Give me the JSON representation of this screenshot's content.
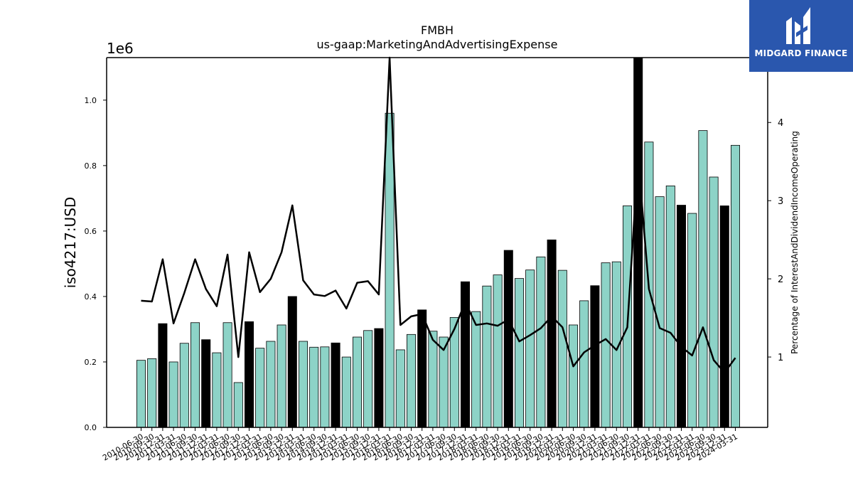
{
  "brand": {
    "name": "MIDGARD FINANCE",
    "background": "#2a57ae"
  },
  "chart_data": {
    "type": "bar",
    "title": "FMBH",
    "subtitle": "us-gaap:MarketingAndAdvertisingExpense",
    "ylabel": "iso4217:USD",
    "y_offset_label": "1e6",
    "y2label": "Percentage of InterestAndDividendIncomeOperating",
    "ylim": [
      0,
      1130000
    ],
    "y2lim": [
      0.1,
      4.83
    ],
    "yticks": [
      "0.0",
      "0.2",
      "0.4",
      "0.6",
      "0.8",
      "1.0"
    ],
    "y2ticks": [
      "1",
      "2",
      "3",
      "4"
    ],
    "colors": {
      "bar": "#8dd3c7",
      "highlight": "#000000",
      "line": "#000000"
    },
    "categories": [
      "2010-06-30",
      "2010-09-30",
      "2010-12-31",
      "2011-03-31",
      "2011-06-30",
      "2011-09-30",
      "2011-12-31",
      "2012-03-31",
      "2012-06-30",
      "2012-09-30",
      "2012-12-31",
      "2013-03-31",
      "2013-06-30",
      "2013-09-30",
      "2013-12-31",
      "2014-03-31",
      "2014-06-30",
      "2014-09-30",
      "2014-12-31",
      "2015-03-31",
      "2015-06-30",
      "2015-09-30",
      "2015-12-31",
      "2016-03-31",
      "2016-06-30",
      "2016-09-30",
      "2016-12-31",
      "2017-03-31",
      "2017-06-30",
      "2017-09-30",
      "2017-12-31",
      "2018-03-31",
      "2018-06-30",
      "2018-09-30",
      "2018-12-31",
      "2019-03-31",
      "2019-06-30",
      "2019-09-30",
      "2019-12-31",
      "2020-03-31",
      "2020-06-30",
      "2020-09-30",
      "2020-12-31",
      "2021-03-31",
      "2021-06-30",
      "2021-09-30",
      "2021-12-31",
      "2022-03-31",
      "2022-06-30",
      "2022-09-30",
      "2022-12-31",
      "2023-03-31",
      "2023-06-30",
      "2023-09-30",
      "2023-12-31",
      "2024-03-31"
    ],
    "xtick_labels": [
      "2010-06-30",
      "2010-09-30",
      "2010-12-31",
      "2011-03-31",
      "2011-06-30",
      "2011-09-30",
      "2011-12-31",
      "2012-03-31",
      "2012-06-30",
      "2012-09-30",
      "2012-12-31",
      "2013-03-31",
      "2013-06-30",
      "2013-09-30",
      "2013-12-31",
      "2014-03-31",
      "2014-06-30",
      "2014-09-30",
      "2014-12-31",
      "2015-03-31",
      "2015-06-30",
      "2015-09-30",
      "2015-12-31",
      "2016-03-31",
      "2016-06-30",
      "2016-09-30",
      "2016-12-31",
      "2017-03-31",
      "2017-06-30",
      "2017-09-30",
      "2017-12-31",
      "2018-03-31",
      "2018-06-30",
      "2018-09-30",
      "2018-12-31",
      "2019-03-31",
      "2019-06-30",
      "2019-09-30",
      "2019-12-31",
      "2020-03-31",
      "2020-06-30",
      "2020-09-30",
      "2020-12-31",
      "2021-03-31",
      "2021-06-30",
      "2021-09-30",
      "2021-12-31",
      "2022-03-31",
      "2022-06-30",
      "2022-09-30",
      "2022-12-31",
      "2023-03-31",
      "2023-06-30",
      "2023-09-30",
      "2023-12-31",
      "2024-03-31"
    ],
    "series": [
      {
        "values": [
          205000,
          210000,
          317000,
          200000,
          257000,
          320000,
          268000,
          228000,
          320000,
          137000,
          323000,
          242000,
          263000,
          313000,
          400000,
          263000,
          245000,
          246000,
          258000,
          215000,
          276000,
          296000,
          302000,
          960000,
          237000,
          284000,
          359000,
          294000,
          276000,
          336000,
          445000,
          354000,
          432000,
          466000,
          541000,
          455000,
          481000,
          521000,
          573000,
          480000,
          313000,
          387000,
          433000,
          503000,
          506000,
          677000,
          1130000,
          872000,
          705000,
          738000,
          679000,
          654000,
          907000,
          765000,
          677000,
          862000
        ],
        "highlight": [
          false,
          false,
          true,
          false,
          false,
          false,
          true,
          false,
          false,
          false,
          true,
          false,
          false,
          false,
          true,
          false,
          false,
          false,
          true,
          false,
          false,
          false,
          true,
          false,
          false,
          false,
          true,
          false,
          false,
          false,
          true,
          false,
          false,
          false,
          true,
          false,
          false,
          false,
          true,
          false,
          false,
          false,
          true,
          false,
          false,
          false,
          true,
          false,
          false,
          false,
          true,
          false,
          false,
          false,
          true,
          false
        ]
      },
      {
        "axis": "right",
        "values": [
          1.72,
          1.71,
          2.25,
          1.43,
          1.82,
          2.25,
          1.87,
          1.65,
          2.31,
          1.0,
          2.34,
          1.83,
          2.0,
          2.34,
          2.94,
          1.98,
          1.8,
          1.78,
          1.85,
          1.62,
          1.95,
          1.97,
          1.8,
          4.83,
          1.41,
          1.52,
          1.55,
          1.22,
          1.09,
          1.36,
          1.7,
          1.41,
          1.43,
          1.4,
          1.48,
          1.2,
          1.28,
          1.37,
          1.52,
          1.38,
          0.88,
          1.06,
          1.15,
          1.23,
          1.09,
          1.38,
          3.55,
          1.87,
          1.37,
          1.31,
          1.13,
          1.02,
          1.38,
          0.96,
          0.8,
          0.99
        ]
      }
    ]
  }
}
